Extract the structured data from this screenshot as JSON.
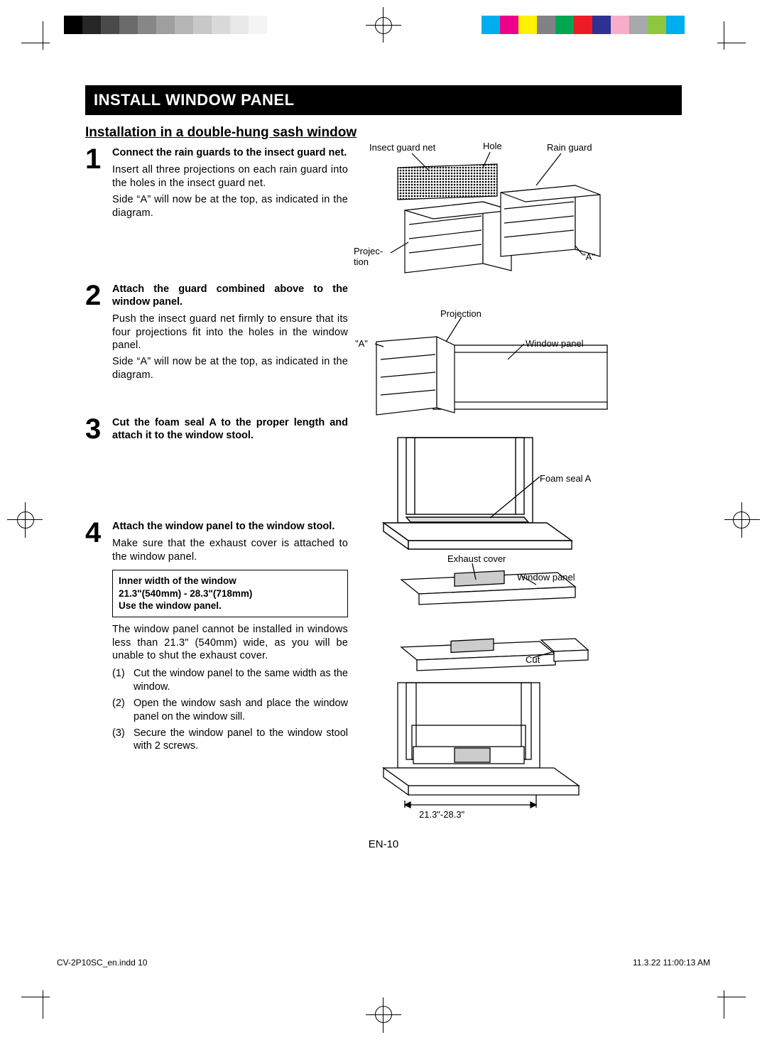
{
  "crop_color": "#000000",
  "color_bars": {
    "left": [
      "#ffffff",
      "#f4f4f4",
      "#e8e8e8",
      "#d9d9d9",
      "#c8c8c8",
      "#b5b5b5",
      "#9f9f9f",
      "#878787",
      "#6b6b6b",
      "#4a4a4a",
      "#262626",
      "#000000"
    ],
    "right": [
      "#00aeef",
      "#ec008c",
      "#fff200",
      "#808285",
      "#00a651",
      "#ed1c24",
      "#2e3192",
      "#f7adc8",
      "#a7a9ac",
      "#8dc63f",
      "#00adee",
      "#ffffff"
    ]
  },
  "title": "INSTALL WINDOW PANEL",
  "subtitle": "Installation in a double-hung sash window",
  "steps": [
    {
      "num": "1",
      "title": "Connect the rain guards to the insect guard net.",
      "paras": [
        "Insert all three projections on each rain guard into the holes in the insect guard net.",
        "Side “A” will now be at the top, as indicated in the diagram."
      ]
    },
    {
      "num": "2",
      "title": "Attach the guard combined above to the window panel.",
      "paras": [
        "Push the insect guard net firmly to ensure that its four projections fit into the holes in the window panel.",
        "Side “A” will now be at the top, as indicated in the diagram."
      ]
    },
    {
      "num": "3",
      "title": "Cut the foam seal A to the proper length and attach it to the window stool.",
      "paras": []
    },
    {
      "num": "4",
      "title": "Attach the window panel to the window stool.",
      "paras": [
        "Make sure that the exhaust cover is attached to the window panel."
      ],
      "box": [
        "Inner width of the window",
        "21.3\"(540mm) - 28.3\"(718mm)",
        "Use the window panel."
      ],
      "after_box": [
        "The window panel cannot be installed in windows less than 21.3\" (540mm) wide, as you will be unable to shut the exhaust cover."
      ],
      "list": [
        "Cut the window panel to the same width as the window.",
        "Open the window sash and place the window panel on the window sill.",
        "Secure the window panel to the window stool with 2 screws."
      ]
    }
  ],
  "diagram1": {
    "insect_guard_net": "Insect guard net",
    "hole": "Hole",
    "rain_guard": "Rain guard",
    "projection": "Projec-\ntion",
    "a": "\"A\""
  },
  "diagram2": {
    "projection": "Projection",
    "a": "\"A\"",
    "window_panel": "Window panel"
  },
  "diagram3": {
    "foam_seal": "Foam seal A"
  },
  "diagram4": {
    "exhaust_cover": "Exhaust cover",
    "window_panel": "Window panel",
    "cut": "Cut",
    "width": "21.3\"-28.3\""
  },
  "page_num": "EN-10",
  "footer_left": "CV-2P10SC_en.indd   10",
  "footer_right": "11.3.22   11:00:13 AM"
}
